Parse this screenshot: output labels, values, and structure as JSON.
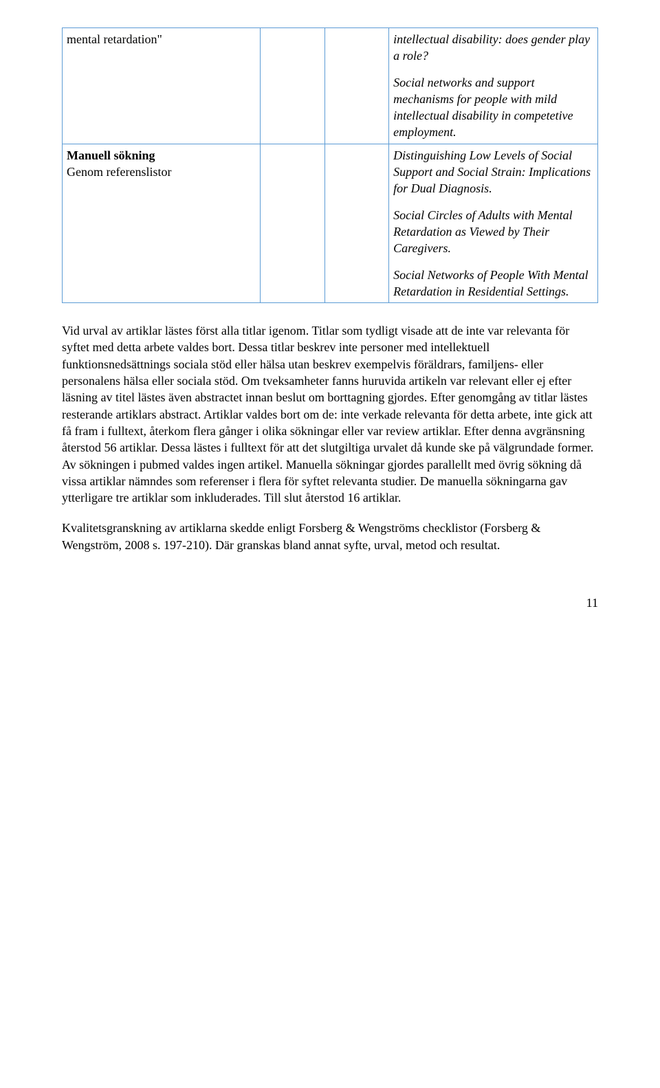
{
  "table": {
    "border_color": "#5b9bd5",
    "rows": [
      {
        "col1": "mental retardation\"",
        "col4_blocks": [
          "intellectual disability: does gender play a role?",
          "Social networks and support mechanisms for people with mild intellectual disability in competetive employment."
        ]
      },
      {
        "col1_bold": "Manuell sökning",
        "col1_normal": "Genom referenslistor",
        "col4_blocks": [
          "Distinguishing Low Levels of Social Support and Social Strain: Implications for Dual Diagnosis.",
          "Social Circles of Adults with Mental Retardation as Viewed by Their Caregivers.",
          "Social Networks of People With Mental Retardation in Residential Settings."
        ]
      }
    ]
  },
  "paragraphs": [
    "Vid urval av artiklar lästes först alla titlar igenom. Titlar som tydligt visade att de inte var relevanta för syftet med detta arbete valdes bort. Dessa titlar beskrev inte personer med intellektuell funktionsnedsättnings sociala stöd eller hälsa utan beskrev exempelvis föräldrars, familjens- eller personalens hälsa eller sociala stöd. Om tveksamheter fanns huruvida artikeln var relevant eller ej efter läsning av titel lästes även abstractet innan beslut om borttagning gjordes. Efter genomgång av titlar lästes resterande artiklars abstract. Artiklar valdes bort om de: inte verkade relevanta för detta arbete, inte gick att få fram i fulltext, återkom flera gånger i olika sökningar eller var review artiklar. Efter denna avgränsning återstod 56 artiklar. Dessa lästes i fulltext för att det slutgiltiga urvalet då kunde ske på välgrundade former. Av sökningen i pubmed valdes ingen artikel. Manuella sökningar gjordes parallellt med övrig sökning då vissa artiklar nämndes som referenser i flera för syftet relevanta studier. De manuella sökningarna gav ytterligare tre  artiklar som inkluderades. Till slut återstod 16 artiklar.",
    "Kvalitetsgranskning av artiklarna skedde enligt Forsberg & Wengströms checklistor (Forsberg & Wengström, 2008 s. 197-210).  Där granskas bland annat syfte, urval, metod och resultat."
  ],
  "page_number": "11"
}
